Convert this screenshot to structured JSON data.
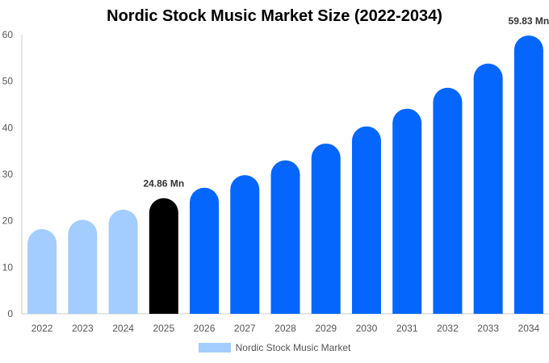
{
  "chart_data": {
    "type": "bar",
    "title": "Nordic Stock Music Market Size (2022-2034)",
    "categories": [
      "2022",
      "2023",
      "2024",
      "2025",
      "2026",
      "2027",
      "2028",
      "2029",
      "2030",
      "2031",
      "2032",
      "2033",
      "2034"
    ],
    "series": [
      {
        "name": "Nordic Stock Music Market",
        "values": [
          18.2,
          20.2,
          22.4,
          24.86,
          27.1,
          29.8,
          33.0,
          36.6,
          40.3,
          44.1,
          48.6,
          53.8,
          59.83
        ]
      }
    ],
    "data_labels": [
      {
        "category": "2025",
        "text": "24.86 Mn"
      },
      {
        "category": "2034",
        "text": "59.83 Mn"
      }
    ],
    "yticks": [
      0,
      10,
      20,
      30,
      40,
      50,
      60
    ],
    "ylim": [
      0,
      60
    ],
    "xlabel": "",
    "ylabel": "",
    "grid": false,
    "legend_position": "bottom-center",
    "colors": {
      "historical": "#a3cdfe",
      "current": "#000000",
      "forecast": "#0466fc",
      "legend": "#a3cdfe",
      "axis": "#cccccc",
      "tick_text": "#555555",
      "label_text": "#333333"
    },
    "color_groups": [
      "historical",
      "historical",
      "historical",
      "current",
      "forecast",
      "forecast",
      "forecast",
      "forecast",
      "forecast",
      "forecast",
      "forecast",
      "forecast",
      "forecast"
    ]
  }
}
